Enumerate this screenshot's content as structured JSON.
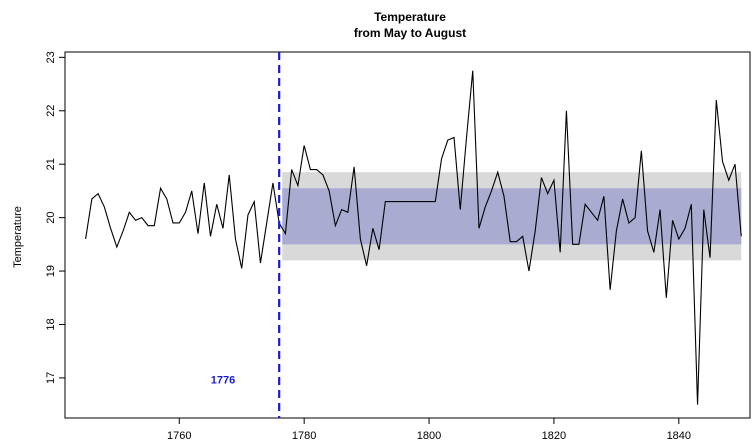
{
  "chart_data": {
    "type": "line",
    "title": "Temperature",
    "subtitle": "from May to August",
    "y_label": "Temperature",
    "x": [
      1745,
      1746,
      1747,
      1748,
      1749,
      1750,
      1751,
      1752,
      1753,
      1754,
      1755,
      1756,
      1757,
      1758,
      1759,
      1760,
      1761,
      1762,
      1763,
      1764,
      1765,
      1766,
      1767,
      1768,
      1769,
      1770,
      1771,
      1772,
      1773,
      1774,
      1775,
      1776,
      1777,
      1778,
      1779,
      1780,
      1781,
      1782,
      1783,
      1784,
      1785,
      1786,
      1787,
      1788,
      1789,
      1790,
      1791,
      1792,
      1793,
      1794,
      1795,
      1796,
      1797,
      1798,
      1799,
      1800,
      1801,
      1802,
      1803,
      1804,
      1805,
      1806,
      1807,
      1808,
      1809,
      1810,
      1811,
      1812,
      1813,
      1814,
      1815,
      1816,
      1817,
      1818,
      1819,
      1820,
      1821,
      1822,
      1823,
      1824,
      1825,
      1826,
      1827,
      1828,
      1829,
      1830,
      1831,
      1832,
      1833,
      1834,
      1835,
      1836,
      1837,
      1838,
      1839,
      1840,
      1841,
      1842,
      1843,
      1844,
      1845,
      1846,
      1847,
      1848,
      1849,
      1850
    ],
    "series": [
      {
        "name": "Temperature",
        "color": "#000000",
        "values": [
          19.6,
          20.35,
          20.45,
          20.2,
          19.8,
          19.45,
          19.75,
          20.1,
          19.95,
          20.0,
          19.85,
          19.85,
          20.55,
          20.35,
          19.9,
          19.9,
          20.1,
          20.5,
          19.7,
          20.65,
          19.65,
          20.25,
          19.8,
          20.8,
          19.6,
          19.05,
          20.05,
          20.3,
          19.15,
          19.9,
          20.65,
          19.9,
          19.7,
          20.9,
          20.6,
          21.35,
          20.9,
          20.9,
          20.8,
          20.5,
          19.85,
          20.15,
          20.1,
          20.95,
          19.6,
          19.1,
          19.8,
          19.4,
          20.3,
          20.3,
          20.3,
          20.3,
          20.3,
          20.3,
          20.3,
          20.3,
          20.3,
          21.1,
          21.45,
          21.5,
          20.15,
          21.5,
          22.75,
          19.8,
          20.2,
          20.5,
          20.85,
          20.4,
          19.55,
          19.55,
          19.65,
          19.0,
          19.75,
          20.75,
          20.45,
          20.7,
          19.35,
          22.0,
          19.5,
          19.5,
          20.25,
          20.1,
          19.95,
          20.4,
          18.65,
          19.75,
          20.35,
          19.9,
          20.0,
          21.25,
          19.75,
          19.35,
          20.15,
          18.5,
          19.95,
          19.6,
          19.8,
          20.25,
          16.5,
          20.15,
          19.25,
          22.2,
          21.05,
          20.7,
          21.0,
          19.65
        ]
      }
    ],
    "bands": [
      {
        "x": [
          1776.5,
          1850
        ],
        "y": [
          19.2,
          20.85
        ],
        "color": "#d9d9d9"
      },
      {
        "x": [
          1776.5,
          1850
        ],
        "y": [
          19.5,
          20.55
        ],
        "color": "#a9acd0"
      }
    ],
    "vline": {
      "x": 1776,
      "color": "#1a1adb",
      "label": "1776",
      "label_x": 1767,
      "label_y": 16.95
    },
    "xlim": [
      1741.7,
      1851.4
    ],
    "ylim": [
      16.25,
      23.1
    ],
    "xticks": [
      1760,
      1780,
      1800,
      1820,
      1840
    ],
    "yticks": [
      17,
      18,
      19,
      20,
      21,
      22,
      23
    ]
  }
}
